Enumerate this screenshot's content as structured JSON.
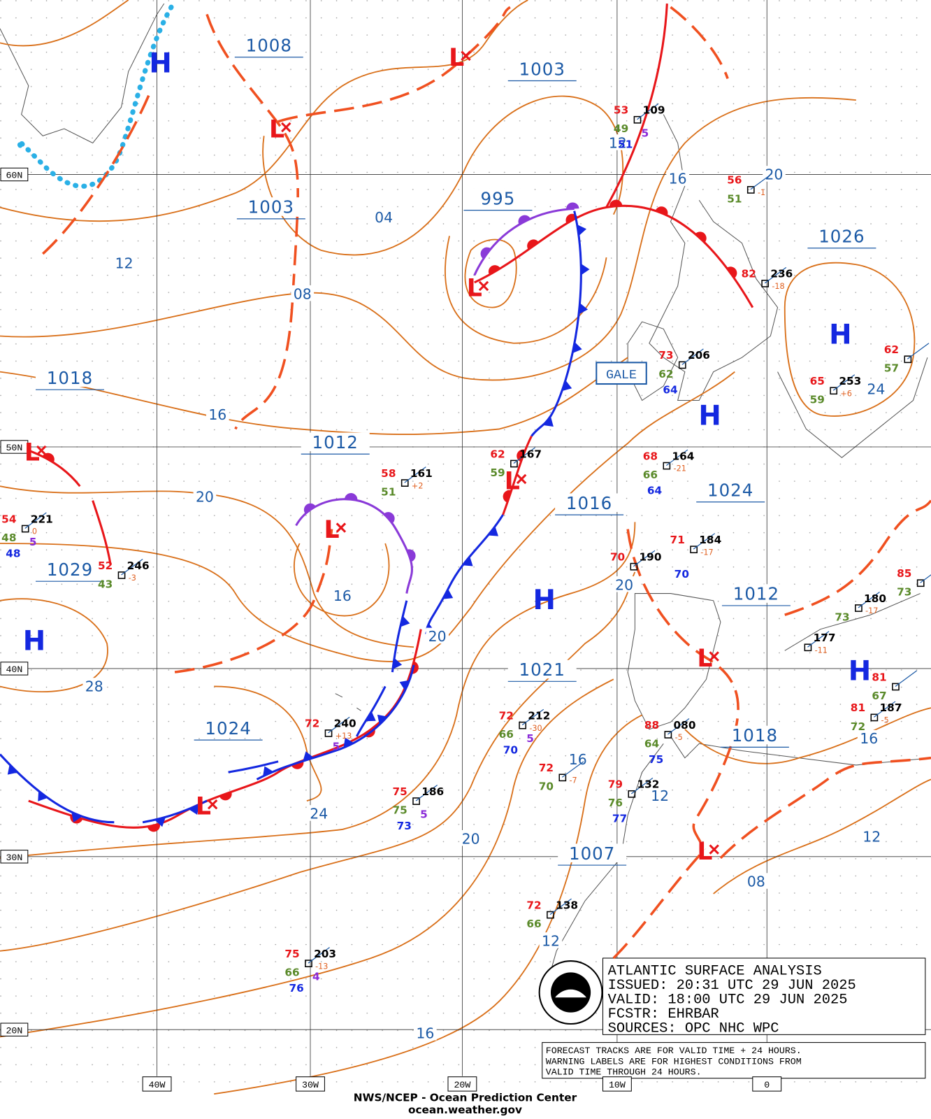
{
  "map": {
    "lat_labels": [
      "60N",
      "50N",
      "40N",
      "30N",
      "20N"
    ],
    "lon_labels": [
      "40W",
      "30W",
      "20W",
      "10W",
      "0"
    ],
    "pressure_labels": [
      "1008",
      "1003",
      "1003",
      "995",
      "1026",
      "1018",
      "1012",
      "1016",
      "1024",
      "1029",
      "1012",
      "1021",
      "1024",
      "1018",
      "1007"
    ],
    "center_symbols": [
      "H",
      "H",
      "H",
      "H",
      "H",
      "H",
      "L",
      "L",
      "L",
      "L",
      "L",
      "L",
      "L",
      "L",
      "L"
    ],
    "isobar_labels": [
      "04",
      "12",
      "08",
      "16",
      "16",
      "20",
      "20",
      "16",
      "20",
      "20",
      "28",
      "24",
      "16",
      "12",
      "16",
      "24",
      "20",
      "12",
      "08",
      "12",
      "16",
      "12"
    ],
    "warning": "GALE",
    "stations": [
      {
        "temp": "53",
        "pressure": "109",
        "dew": "49",
        "wave": "5",
        "wind": "51"
      },
      {
        "temp": "56",
        "dew": "51",
        "tendency": "-1"
      },
      {
        "temp": "82",
        "pressure": "236",
        "tendency": "-18"
      },
      {
        "temp": "73",
        "pressure": "206",
        "dew": "62",
        "wind": "64"
      },
      {
        "temp": "65",
        "pressure": "253",
        "dew": "59",
        "tendency": "+6"
      },
      {
        "temp": "62",
        "dew": "57"
      },
      {
        "temp": "68",
        "pressure": "164",
        "dew": "66",
        "tendency": "-21",
        "wind": "64"
      },
      {
        "temp": "58",
        "pressure": "161",
        "dew": "51",
        "tendency": "+2"
      },
      {
        "temp": "62",
        "pressure": "167",
        "dew": "59"
      },
      {
        "temp": "54",
        "pressure": "221",
        "dew": "48",
        "tendency": "0",
        "wave": "5",
        "wind": "48"
      },
      {
        "temp": "52",
        "pressure": "246",
        "dew": "43",
        "tendency": "-3"
      },
      {
        "temp": "71",
        "pressure": "184",
        "tendency": "-17",
        "wind": "70"
      },
      {
        "temp": "70",
        "pressure": "190"
      },
      {
        "pressure": "180",
        "dew": "73",
        "tendency": "-17"
      },
      {
        "pressure": "177",
        "tendency": "-11"
      },
      {
        "temp": "81",
        "pressure": "187",
        "dew": "72",
        "tendency": "-5"
      },
      {
        "temp": "88",
        "pressure": "080",
        "dew": "64",
        "tendency": "-5",
        "wind": "75"
      },
      {
        "temp": "72",
        "pressure": "240",
        "tendency": "+13",
        "wave": "5"
      },
      {
        "temp": "72",
        "pressure": "212",
        "dew": "66",
        "tendency": "-30",
        "wave": "5",
        "wind": "70"
      },
      {
        "temp": "72",
        "dew": "70",
        "tendency": "-7"
      },
      {
        "temp": "75",
        "pressure": "186",
        "dew": "75",
        "wave": "5",
        "wind": "73"
      },
      {
        "temp": "79",
        "pressure": "132",
        "dew": "76",
        "wind": "77"
      },
      {
        "temp": "72",
        "pressure": "138",
        "dew": "66"
      },
      {
        "temp": "75",
        "pressure": "203",
        "dew": "66",
        "tendency": "-13",
        "wave": "4",
        "wind": "76"
      },
      {
        "temp": "85",
        "dew": "73"
      },
      {
        "temp": "81",
        "dew": "67"
      }
    ],
    "info": {
      "title": "ATLANTIC SURFACE ANALYSIS",
      "issued": "ISSUED: 20:31 UTC 29 JUN 2025",
      "valid": "VALID:  18:00 UTC 29 JUN 2025",
      "forecaster": "FCSTR:  EHRBAR",
      "sources": "SOURCES: OPC NHC WPC"
    },
    "note": [
      "FORECAST TRACKS ARE FOR VALID TIME + 24 HOURS.",
      "WARNING LABELS ARE FOR HIGHEST CONDITIONS FROM",
      "VALID TIME THROUGH 24 HOURS."
    ],
    "footer": [
      "NWS/NCEP - Ocean Prediction Center",
      "ocean.weather.gov"
    ]
  }
}
